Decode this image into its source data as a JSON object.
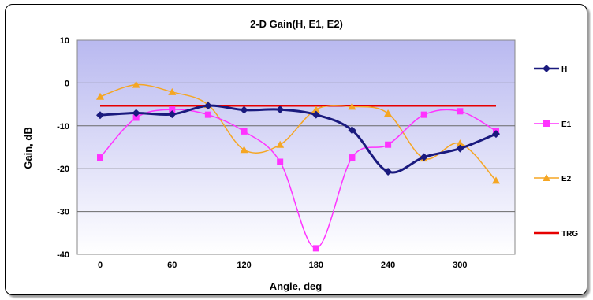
{
  "chart_data": {
    "type": "line",
    "title": "2-D Gain(H, E1, E2)",
    "xlabel": "Angle, deg",
    "ylabel": "Gain, dB",
    "x": [
      0,
      30,
      60,
      90,
      120,
      150,
      180,
      210,
      240,
      270,
      300,
      330
    ],
    "x_ticks": [
      "0",
      "60",
      "120",
      "180",
      "240",
      "300"
    ],
    "y_ticks": [
      "10",
      "0",
      "-10",
      "-20",
      "-30",
      "-40"
    ],
    "ylim": [
      -40,
      10
    ],
    "grid": "horizontal",
    "legend_position": "right",
    "series": [
      {
        "name": "H",
        "color": "#1a1a7e",
        "marker": "diamond",
        "values": [
          -7.5,
          -7.0,
          -7.3,
          -5.3,
          -6.3,
          -6.2,
          -7.4,
          -11.0,
          -20.7,
          -17.3,
          -15.3,
          -11.9
        ]
      },
      {
        "name": "E1",
        "color": "#ff33ff",
        "marker": "square",
        "values": [
          -17.4,
          -8.1,
          -6.2,
          -7.4,
          -11.3,
          -18.4,
          -38.6,
          -17.4,
          -14.4,
          -7.4,
          -6.6,
          -11.2
        ]
      },
      {
        "name": "E2",
        "color": "#f5a623",
        "marker": "triangle",
        "values": [
          -3.2,
          -0.4,
          -2.1,
          -5.1,
          -15.6,
          -14.4,
          -6.2,
          -5.5,
          -7.1,
          -17.6,
          -14.1,
          -22.8
        ]
      },
      {
        "name": "TRG",
        "color": "#e60000",
        "marker": "none",
        "values": [
          -5.3,
          -5.3,
          -5.3,
          -5.3,
          -5.3,
          -5.3,
          -5.3,
          -5.3,
          -5.3,
          -5.3,
          -5.3,
          -5.3
        ]
      }
    ]
  }
}
